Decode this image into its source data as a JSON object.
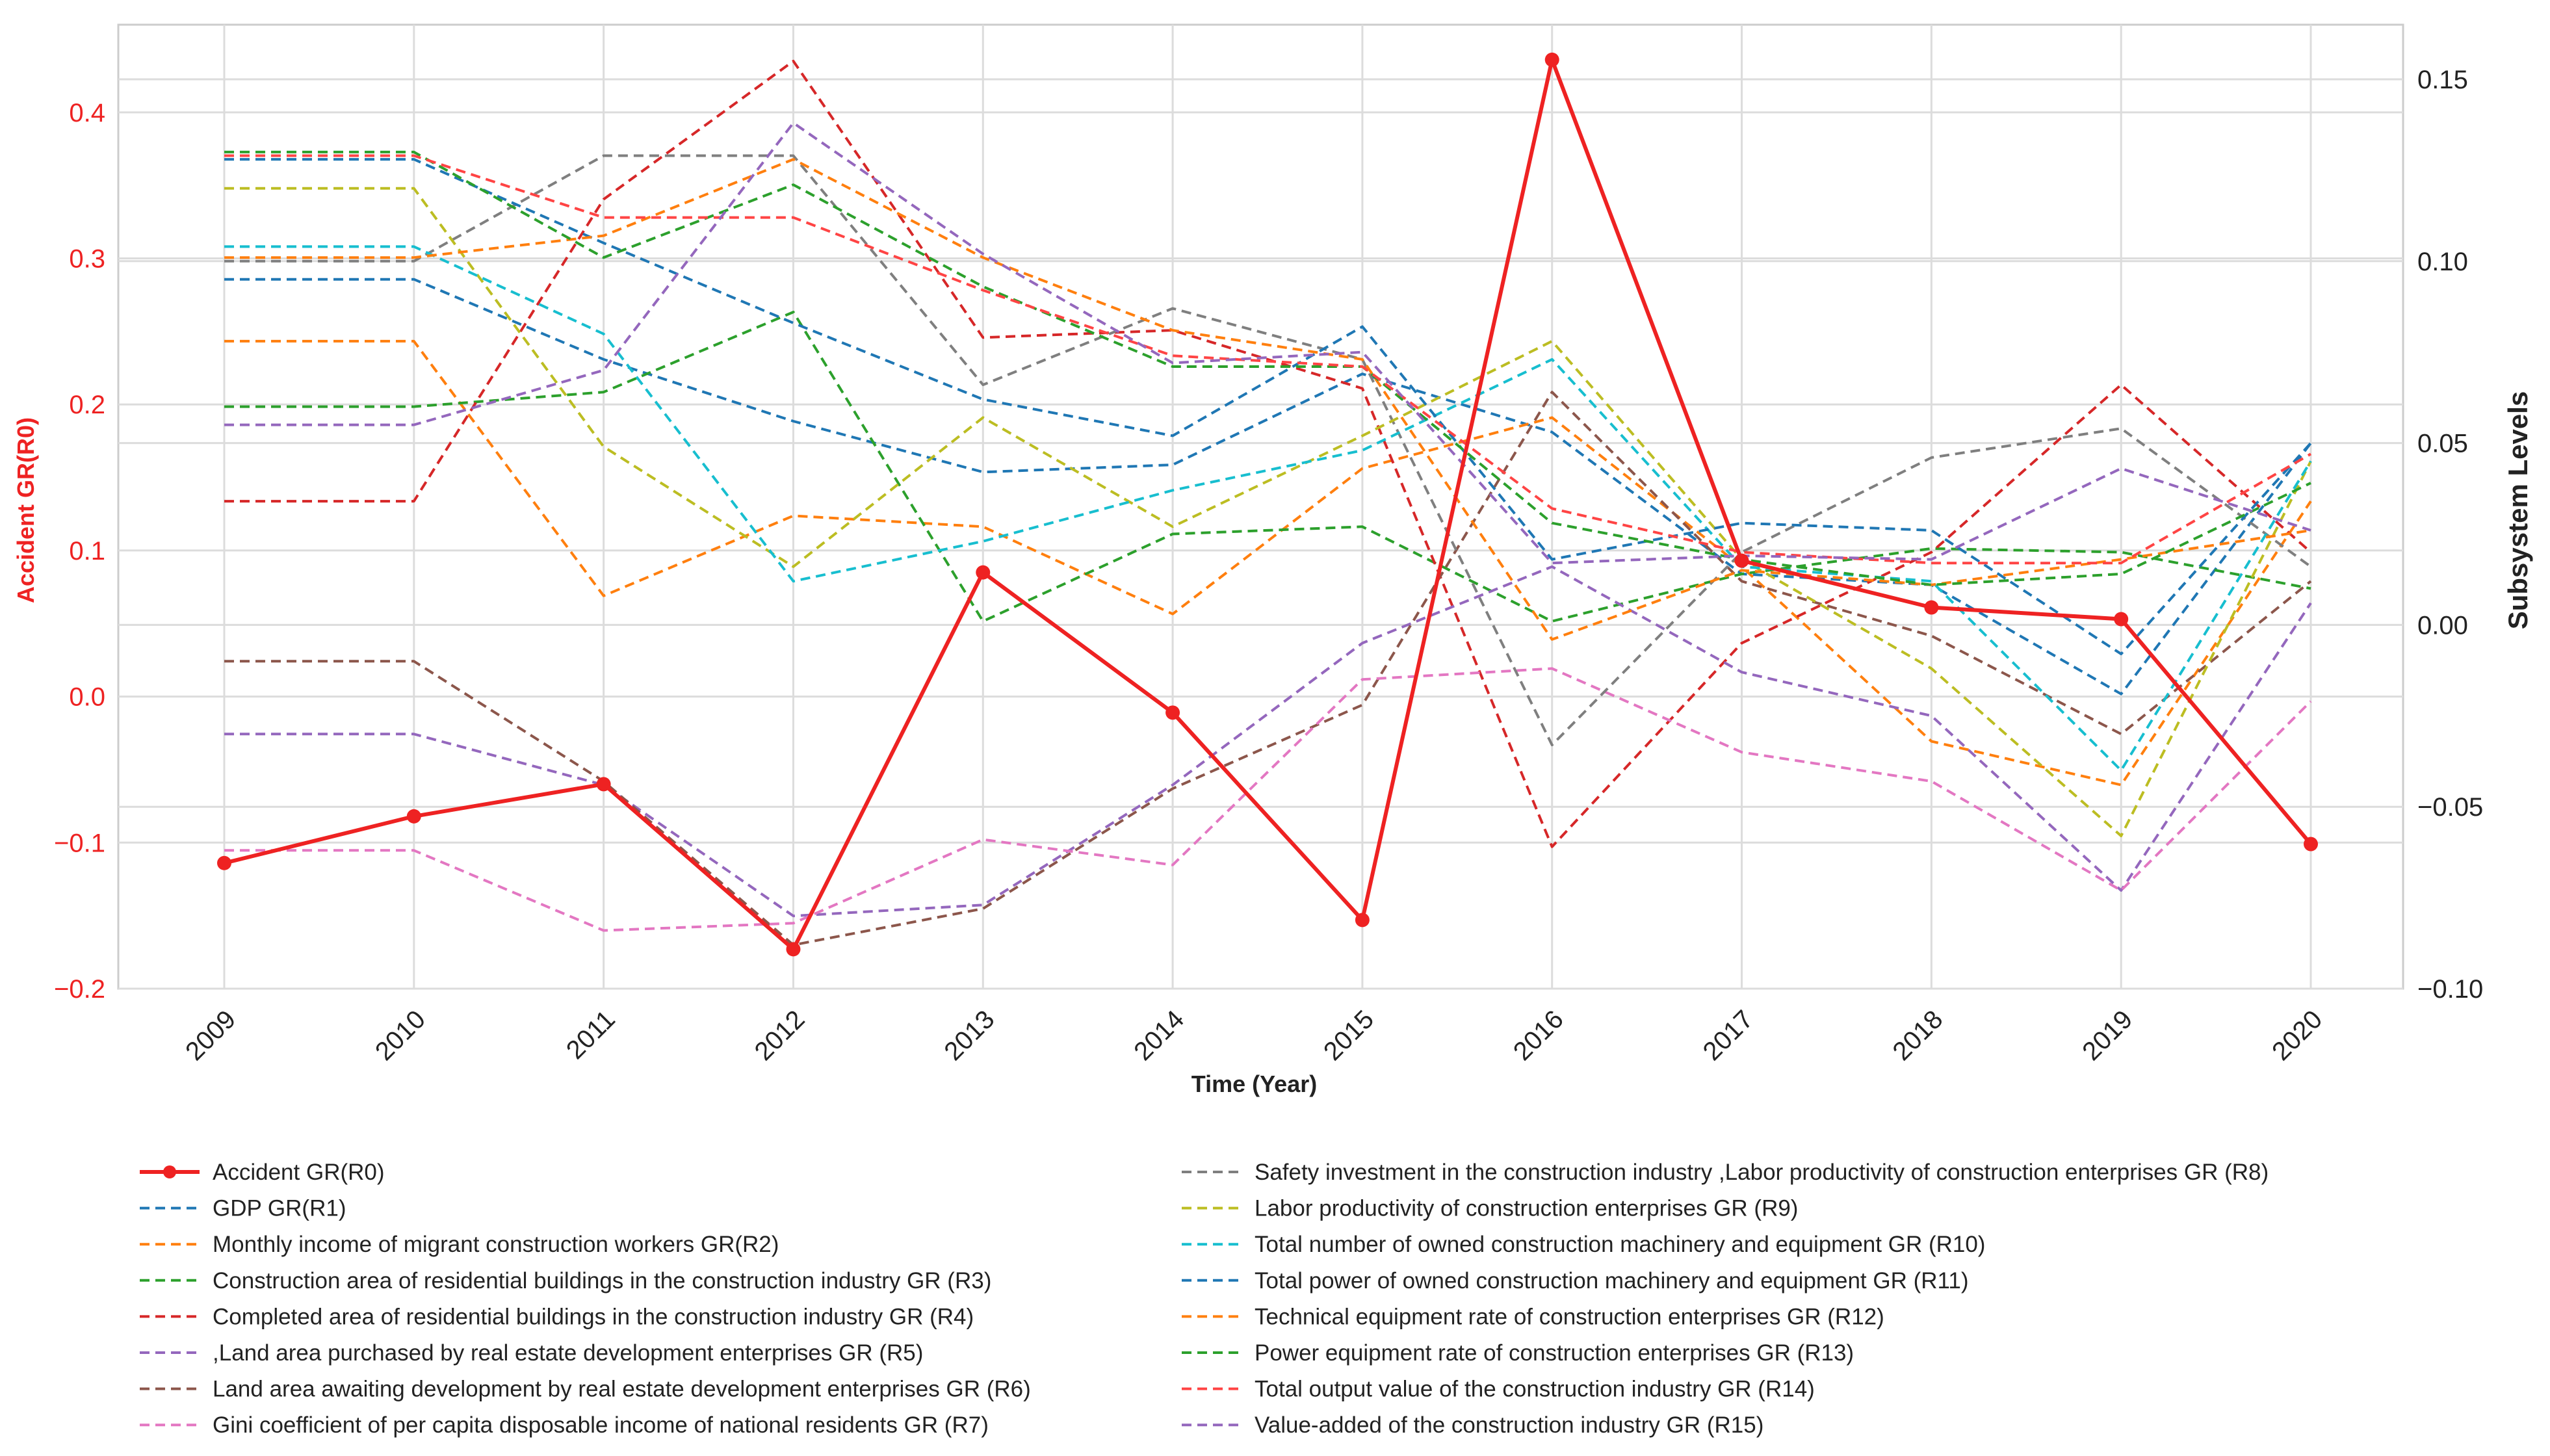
{
  "chart_data": {
    "type": "line",
    "xlabel": "Time (Year)",
    "ylabel_left": "Accident GR(R0)",
    "ylabel_right": "Subsystem Levels",
    "categories": [
      "2009",
      "2010",
      "2011",
      "2012",
      "2013",
      "2014",
      "2015",
      "2016",
      "2017",
      "2018",
      "2019",
      "2020"
    ],
    "ylim_left": [
      -0.2,
      0.46
    ],
    "ylim_right": [
      -0.1,
      0.165
    ],
    "left_ticks": [
      -0.2,
      -0.1,
      0.0,
      0.1,
      0.2,
      0.3,
      0.4
    ],
    "left_tick_labels": [
      "−0.2",
      "−0.1",
      "0.0",
      "0.1",
      "0.2",
      "0.3",
      "0.4"
    ],
    "right_ticks": [
      -0.1,
      -0.05,
      0.0,
      0.05,
      0.1,
      0.15
    ],
    "right_tick_labels": [
      "−0.10",
      "−0.05",
      "0.00",
      "0.05",
      "0.10",
      "0.15"
    ],
    "grid": true,
    "legend_position": "bottom",
    "accent_color": "#ee2222",
    "series": [
      {
        "name": "Accident GR(R0)",
        "axis": "left",
        "color": "#ee2222",
        "style": "solid",
        "values": [
          -0.114,
          -0.082,
          -0.06,
          -0.173,
          0.085,
          -0.011,
          -0.153,
          0.436,
          0.093,
          0.061,
          0.053,
          -0.101
        ]
      },
      {
        "name": "GDP GR(R1)",
        "axis": "right",
        "color": "#1f77b4",
        "style": "dashed",
        "values": [
          0.095,
          0.095,
          0.073,
          0.056,
          0.042,
          0.044,
          0.069,
          0.053,
          0.014,
          0.011,
          -0.019,
          0.05
        ]
      },
      {
        "name": "Monthly income of migrant construction workers GR(R2)",
        "axis": "right",
        "color": "#ff7f0e",
        "style": "dashed",
        "values": [
          0.078,
          0.078,
          0.008,
          0.03,
          0.027,
          0.003,
          0.043,
          0.057,
          0.016,
          -0.032,
          -0.044,
          0.034
        ]
      },
      {
        "name": "Construction area of residential buildings in the construction industry GR (R3)",
        "axis": "right",
        "color": "#2ca02c",
        "style": "dashed",
        "values": [
          0.06,
          0.06,
          0.064,
          0.086,
          0.001,
          0.025,
          0.027,
          0.001,
          0.014,
          0.021,
          0.02,
          0.01
        ]
      },
      {
        "name": "Completed area of residential buildings in the construction industry GR (R4)",
        "axis": "right",
        "color": "#d62728",
        "style": "dashed",
        "values": [
          0.034,
          0.034,
          0.117,
          0.155,
          0.079,
          0.081,
          0.065,
          -0.061,
          -0.005,
          0.02,
          0.066,
          0.02
        ]
      },
      {
        "name": ",Land area purchased by real estate development enterprises GR (R5)",
        "axis": "right",
        "color": "#9467bd",
        "style": "dashed",
        "values": [
          -0.03,
          -0.03,
          -0.044,
          -0.08,
          -0.077,
          -0.044,
          -0.005,
          0.016,
          -0.013,
          -0.025,
          -0.073,
          0.006
        ]
      },
      {
        "name": "Land area awaiting development by real estate development enterprises GR (R6)",
        "axis": "right",
        "color": "#8c564b",
        "style": "dashed",
        "values": [
          -0.01,
          -0.01,
          -0.043,
          -0.088,
          -0.078,
          -0.045,
          -0.022,
          0.064,
          0.012,
          -0.003,
          -0.03,
          0.012
        ]
      },
      {
        "name": "Gini coefficient of per capita disposable income of national residents GR (R7)",
        "axis": "right",
        "color": "#e377c2",
        "style": "dashed",
        "values": [
          -0.062,
          -0.062,
          -0.084,
          -0.082,
          -0.059,
          -0.066,
          -0.015,
          -0.012,
          -0.035,
          -0.043,
          -0.073,
          -0.021
        ]
      },
      {
        "name": "Safety investment in the construction industry ,Labor productivity of construction enterprises GR (R8)",
        "axis": "right",
        "color": "#7f7f7f",
        "style": "dashed",
        "values": [
          0.1,
          0.1,
          0.129,
          0.129,
          0.066,
          0.087,
          0.073,
          -0.033,
          0.02,
          0.046,
          0.054,
          0.016
        ]
      },
      {
        "name": "Labor productivity of construction enterprises GR (R9)",
        "axis": "right",
        "color": "#bcbd22",
        "style": "dashed",
        "values": [
          0.12,
          0.12,
          0.049,
          0.016,
          0.057,
          0.027,
          0.052,
          0.078,
          0.018,
          -0.012,
          -0.058,
          0.045
        ]
      },
      {
        "name": "Total number of owned construction machinery and equipment GR (R10)",
        "axis": "right",
        "color": "#17becf",
        "style": "dashed",
        "values": [
          0.104,
          0.104,
          0.08,
          0.012,
          0.023,
          0.037,
          0.048,
          0.073,
          0.016,
          0.012,
          -0.04,
          0.045
        ]
      },
      {
        "name": "Total power of owned construction machinery and equipment GR (R11)",
        "axis": "right",
        "color": "#1f77b4",
        "style": "dashed",
        "values": [
          0.128,
          0.128,
          0.105,
          0.083,
          0.062,
          0.052,
          0.082,
          0.018,
          0.028,
          0.026,
          -0.008,
          0.05
        ]
      },
      {
        "name": "Technical equipment rate of construction enterprises GR (R12)",
        "axis": "right",
        "color": "#ff7f0e",
        "style": "dashed",
        "values": [
          0.101,
          0.101,
          0.107,
          0.128,
          0.101,
          0.081,
          0.073,
          -0.004,
          0.015,
          0.011,
          0.018,
          0.026
        ]
      },
      {
        "name": "Power equipment rate of construction enterprises  GR (R13)",
        "axis": "right",
        "color": "#2ca02c",
        "style": "dashed",
        "values": [
          0.13,
          0.13,
          0.101,
          0.121,
          0.093,
          0.071,
          0.071,
          0.028,
          0.018,
          0.011,
          0.014,
          0.039
        ]
      },
      {
        "name": "Total output value of the construction industry  GR (R14)",
        "axis": "right",
        "color": "#ff4444",
        "style": "dashed",
        "values": [
          0.129,
          0.129,
          0.112,
          0.112,
          0.092,
          0.074,
          0.071,
          0.032,
          0.02,
          0.017,
          0.017,
          0.047
        ]
      },
      {
        "name": "Value-added of the construction industry GR (R15)",
        "axis": "right",
        "color": "#9467bd",
        "style": "dashed",
        "values": [
          0.055,
          0.055,
          0.07,
          0.138,
          0.102,
          0.072,
          0.075,
          0.017,
          0.019,
          0.018,
          0.043,
          0.026
        ]
      }
    ]
  }
}
